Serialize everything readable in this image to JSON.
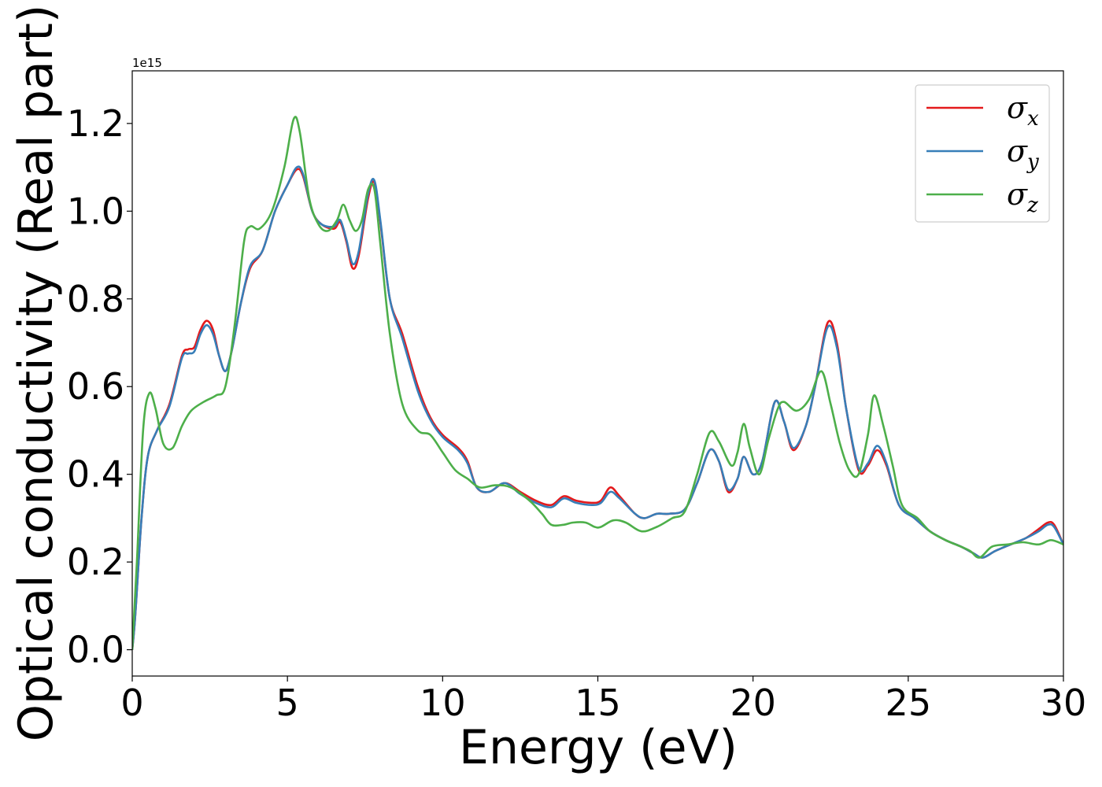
{
  "chart_data": {
    "type": "line",
    "xlabel": "Energy (eV)",
    "ylabel": "Optical conductivity (Real part)",
    "y_offset_label": "1e15",
    "xlim": [
      0,
      30
    ],
    "ylim": [
      -0.06,
      1.32
    ],
    "x_ticks": [
      0,
      5,
      10,
      15,
      20,
      25,
      30
    ],
    "x_tick_labels": [
      "0",
      "5",
      "10",
      "15",
      "20",
      "25",
      "30"
    ],
    "y_ticks": [
      0.0,
      0.2,
      0.4,
      0.6,
      0.8,
      1.0,
      1.2
    ],
    "y_tick_labels": [
      "0.0",
      "0.2",
      "0.4",
      "0.6",
      "0.8",
      "1.0",
      "1.2"
    ],
    "grid": false,
    "legend_position": "top-right",
    "series": [
      {
        "name": "σx",
        "symbol": "σ",
        "subscript": "x",
        "color": "#e41a1c",
        "points": [
          [
            0,
            0.0
          ],
          [
            0.1,
            0.08
          ],
          [
            0.3,
            0.3
          ],
          [
            0.5,
            0.44
          ],
          [
            0.8,
            0.5
          ],
          [
            1.2,
            0.56
          ],
          [
            1.6,
            0.67
          ],
          [
            1.8,
            0.685
          ],
          [
            2.0,
            0.69
          ],
          [
            2.2,
            0.73
          ],
          [
            2.4,
            0.75
          ],
          [
            2.6,
            0.73
          ],
          [
            2.8,
            0.67
          ],
          [
            3.0,
            0.635
          ],
          [
            3.2,
            0.68
          ],
          [
            3.5,
            0.79
          ],
          [
            3.8,
            0.87
          ],
          [
            4.2,
            0.91
          ],
          [
            4.6,
            1.0
          ],
          [
            5.0,
            1.06
          ],
          [
            5.3,
            1.095
          ],
          [
            5.5,
            1.08
          ],
          [
            5.8,
            1.0
          ],
          [
            6.1,
            0.97
          ],
          [
            6.5,
            0.96
          ],
          [
            6.7,
            0.975
          ],
          [
            6.9,
            0.93
          ],
          [
            7.1,
            0.87
          ],
          [
            7.3,
            0.9
          ],
          [
            7.6,
            1.03
          ],
          [
            7.8,
            1.065
          ],
          [
            8.0,
            0.97
          ],
          [
            8.3,
            0.8
          ],
          [
            8.7,
            0.72
          ],
          [
            9.2,
            0.6
          ],
          [
            9.6,
            0.53
          ],
          [
            10.0,
            0.49
          ],
          [
            10.5,
            0.46
          ],
          [
            10.8,
            0.43
          ],
          [
            11.1,
            0.37
          ],
          [
            11.5,
            0.36
          ],
          [
            12.0,
            0.38
          ],
          [
            12.5,
            0.36
          ],
          [
            13.0,
            0.34
          ],
          [
            13.5,
            0.33
          ],
          [
            13.9,
            0.35
          ],
          [
            14.3,
            0.34
          ],
          [
            14.8,
            0.335
          ],
          [
            15.1,
            0.34
          ],
          [
            15.4,
            0.37
          ],
          [
            15.7,
            0.35
          ],
          [
            16.2,
            0.31
          ],
          [
            16.5,
            0.3
          ],
          [
            16.9,
            0.31
          ],
          [
            17.3,
            0.31
          ],
          [
            17.8,
            0.32
          ],
          [
            18.2,
            0.38
          ],
          [
            18.6,
            0.455
          ],
          [
            18.9,
            0.43
          ],
          [
            19.2,
            0.36
          ],
          [
            19.5,
            0.39
          ],
          [
            19.7,
            0.44
          ],
          [
            20.0,
            0.4
          ],
          [
            20.3,
            0.43
          ],
          [
            20.7,
            0.565
          ],
          [
            21.0,
            0.52
          ],
          [
            21.3,
            0.455
          ],
          [
            21.7,
            0.51
          ],
          [
            22.0,
            0.6
          ],
          [
            22.4,
            0.745
          ],
          [
            22.7,
            0.7
          ],
          [
            23.0,
            0.55
          ],
          [
            23.4,
            0.41
          ],
          [
            23.7,
            0.42
          ],
          [
            24.0,
            0.455
          ],
          [
            24.3,
            0.42
          ],
          [
            24.7,
            0.33
          ],
          [
            25.2,
            0.3
          ],
          [
            25.7,
            0.27
          ],
          [
            26.2,
            0.25
          ],
          [
            26.7,
            0.235
          ],
          [
            27.1,
            0.22
          ],
          [
            27.4,
            0.21
          ],
          [
            27.8,
            0.225
          ],
          [
            28.3,
            0.24
          ],
          [
            28.8,
            0.255
          ],
          [
            29.2,
            0.275
          ],
          [
            29.5,
            0.29
          ],
          [
            29.7,
            0.285
          ],
          [
            30.0,
            0.24
          ]
        ]
      },
      {
        "name": "σy",
        "symbol": "σ",
        "subscript": "y",
        "color": "#377eb8",
        "points": [
          [
            0,
            0.0
          ],
          [
            0.1,
            0.08
          ],
          [
            0.3,
            0.3
          ],
          [
            0.5,
            0.44
          ],
          [
            0.8,
            0.5
          ],
          [
            1.2,
            0.555
          ],
          [
            1.6,
            0.665
          ],
          [
            1.8,
            0.675
          ],
          [
            2.0,
            0.68
          ],
          [
            2.2,
            0.72
          ],
          [
            2.4,
            0.74
          ],
          [
            2.6,
            0.72
          ],
          [
            2.8,
            0.67
          ],
          [
            3.0,
            0.635
          ],
          [
            3.2,
            0.68
          ],
          [
            3.5,
            0.79
          ],
          [
            3.8,
            0.875
          ],
          [
            4.2,
            0.91
          ],
          [
            4.6,
            1.0
          ],
          [
            5.0,
            1.06
          ],
          [
            5.3,
            1.1
          ],
          [
            5.5,
            1.085
          ],
          [
            5.8,
            1.0
          ],
          [
            6.1,
            0.97
          ],
          [
            6.5,
            0.965
          ],
          [
            6.7,
            0.98
          ],
          [
            6.9,
            0.935
          ],
          [
            7.1,
            0.88
          ],
          [
            7.3,
            0.91
          ],
          [
            7.6,
            1.04
          ],
          [
            7.8,
            1.07
          ],
          [
            8.0,
            0.975
          ],
          [
            8.3,
            0.8
          ],
          [
            8.7,
            0.71
          ],
          [
            9.2,
            0.59
          ],
          [
            9.6,
            0.525
          ],
          [
            10.0,
            0.485
          ],
          [
            10.5,
            0.455
          ],
          [
            10.8,
            0.425
          ],
          [
            11.1,
            0.37
          ],
          [
            11.5,
            0.36
          ],
          [
            12.0,
            0.38
          ],
          [
            12.5,
            0.355
          ],
          [
            13.0,
            0.335
          ],
          [
            13.5,
            0.325
          ],
          [
            13.9,
            0.345
          ],
          [
            14.3,
            0.335
          ],
          [
            14.8,
            0.33
          ],
          [
            15.1,
            0.335
          ],
          [
            15.4,
            0.36
          ],
          [
            15.7,
            0.345
          ],
          [
            16.2,
            0.31
          ],
          [
            16.5,
            0.3
          ],
          [
            16.9,
            0.31
          ],
          [
            17.3,
            0.31
          ],
          [
            17.8,
            0.32
          ],
          [
            18.2,
            0.38
          ],
          [
            18.6,
            0.455
          ],
          [
            18.9,
            0.43
          ],
          [
            19.2,
            0.365
          ],
          [
            19.5,
            0.39
          ],
          [
            19.7,
            0.44
          ],
          [
            20.0,
            0.4
          ],
          [
            20.3,
            0.43
          ],
          [
            20.7,
            0.565
          ],
          [
            21.0,
            0.52
          ],
          [
            21.3,
            0.46
          ],
          [
            21.7,
            0.51
          ],
          [
            22.0,
            0.6
          ],
          [
            22.4,
            0.735
          ],
          [
            22.7,
            0.69
          ],
          [
            23.0,
            0.55
          ],
          [
            23.4,
            0.415
          ],
          [
            23.7,
            0.425
          ],
          [
            24.0,
            0.465
          ],
          [
            24.3,
            0.425
          ],
          [
            24.7,
            0.33
          ],
          [
            25.2,
            0.3
          ],
          [
            25.7,
            0.27
          ],
          [
            26.2,
            0.25
          ],
          [
            26.7,
            0.235
          ],
          [
            27.1,
            0.22
          ],
          [
            27.4,
            0.21
          ],
          [
            27.8,
            0.225
          ],
          [
            28.3,
            0.24
          ],
          [
            28.8,
            0.255
          ],
          [
            29.2,
            0.27
          ],
          [
            29.5,
            0.285
          ],
          [
            29.7,
            0.28
          ],
          [
            30.0,
            0.24
          ]
        ]
      },
      {
        "name": "σz",
        "symbol": "σ",
        "subscript": "z",
        "color": "#4daf4a",
        "points": [
          [
            0,
            0.0
          ],
          [
            0.15,
            0.2
          ],
          [
            0.35,
            0.5
          ],
          [
            0.55,
            0.585
          ],
          [
            0.75,
            0.55
          ],
          [
            1.0,
            0.47
          ],
          [
            1.3,
            0.46
          ],
          [
            1.6,
            0.51
          ],
          [
            1.9,
            0.545
          ],
          [
            2.3,
            0.565
          ],
          [
            2.7,
            0.58
          ],
          [
            3.0,
            0.6
          ],
          [
            3.3,
            0.74
          ],
          [
            3.6,
            0.93
          ],
          [
            3.8,
            0.965
          ],
          [
            4.1,
            0.96
          ],
          [
            4.5,
            1.0
          ],
          [
            4.9,
            1.1
          ],
          [
            5.2,
            1.21
          ],
          [
            5.4,
            1.18
          ],
          [
            5.7,
            1.03
          ],
          [
            6.0,
            0.97
          ],
          [
            6.3,
            0.955
          ],
          [
            6.6,
            0.98
          ],
          [
            6.8,
            1.015
          ],
          [
            7.0,
            0.98
          ],
          [
            7.2,
            0.955
          ],
          [
            7.4,
            0.98
          ],
          [
            7.6,
            1.05
          ],
          [
            7.8,
            1.05
          ],
          [
            8.0,
            0.92
          ],
          [
            8.3,
            0.72
          ],
          [
            8.7,
            0.56
          ],
          [
            9.2,
            0.5
          ],
          [
            9.6,
            0.49
          ],
          [
            10.0,
            0.45
          ],
          [
            10.4,
            0.41
          ],
          [
            10.8,
            0.39
          ],
          [
            11.2,
            0.37
          ],
          [
            11.7,
            0.375
          ],
          [
            12.2,
            0.37
          ],
          [
            12.8,
            0.34
          ],
          [
            13.2,
            0.31
          ],
          [
            13.5,
            0.285
          ],
          [
            13.9,
            0.285
          ],
          [
            14.2,
            0.29
          ],
          [
            14.6,
            0.29
          ],
          [
            14.9,
            0.28
          ],
          [
            15.1,
            0.28
          ],
          [
            15.5,
            0.295
          ],
          [
            15.9,
            0.29
          ],
          [
            16.4,
            0.27
          ],
          [
            16.9,
            0.28
          ],
          [
            17.4,
            0.3
          ],
          [
            17.8,
            0.315
          ],
          [
            18.2,
            0.4
          ],
          [
            18.6,
            0.495
          ],
          [
            18.9,
            0.475
          ],
          [
            19.3,
            0.42
          ],
          [
            19.5,
            0.45
          ],
          [
            19.7,
            0.515
          ],
          [
            19.9,
            0.46
          ],
          [
            20.2,
            0.4
          ],
          [
            20.5,
            0.48
          ],
          [
            20.8,
            0.55
          ],
          [
            21.0,
            0.565
          ],
          [
            21.4,
            0.545
          ],
          [
            21.8,
            0.57
          ],
          [
            22.2,
            0.635
          ],
          [
            22.5,
            0.56
          ],
          [
            22.8,
            0.47
          ],
          [
            23.1,
            0.41
          ],
          [
            23.4,
            0.4
          ],
          [
            23.7,
            0.49
          ],
          [
            23.9,
            0.58
          ],
          [
            24.2,
            0.51
          ],
          [
            24.5,
            0.42
          ],
          [
            24.8,
            0.33
          ],
          [
            25.3,
            0.3
          ],
          [
            25.7,
            0.27
          ],
          [
            26.2,
            0.25
          ],
          [
            26.7,
            0.235
          ],
          [
            27.0,
            0.225
          ],
          [
            27.3,
            0.21
          ],
          [
            27.7,
            0.235
          ],
          [
            28.2,
            0.24
          ],
          [
            28.7,
            0.245
          ],
          [
            29.2,
            0.24
          ],
          [
            29.6,
            0.25
          ],
          [
            30.0,
            0.24
          ]
        ]
      }
    ]
  }
}
